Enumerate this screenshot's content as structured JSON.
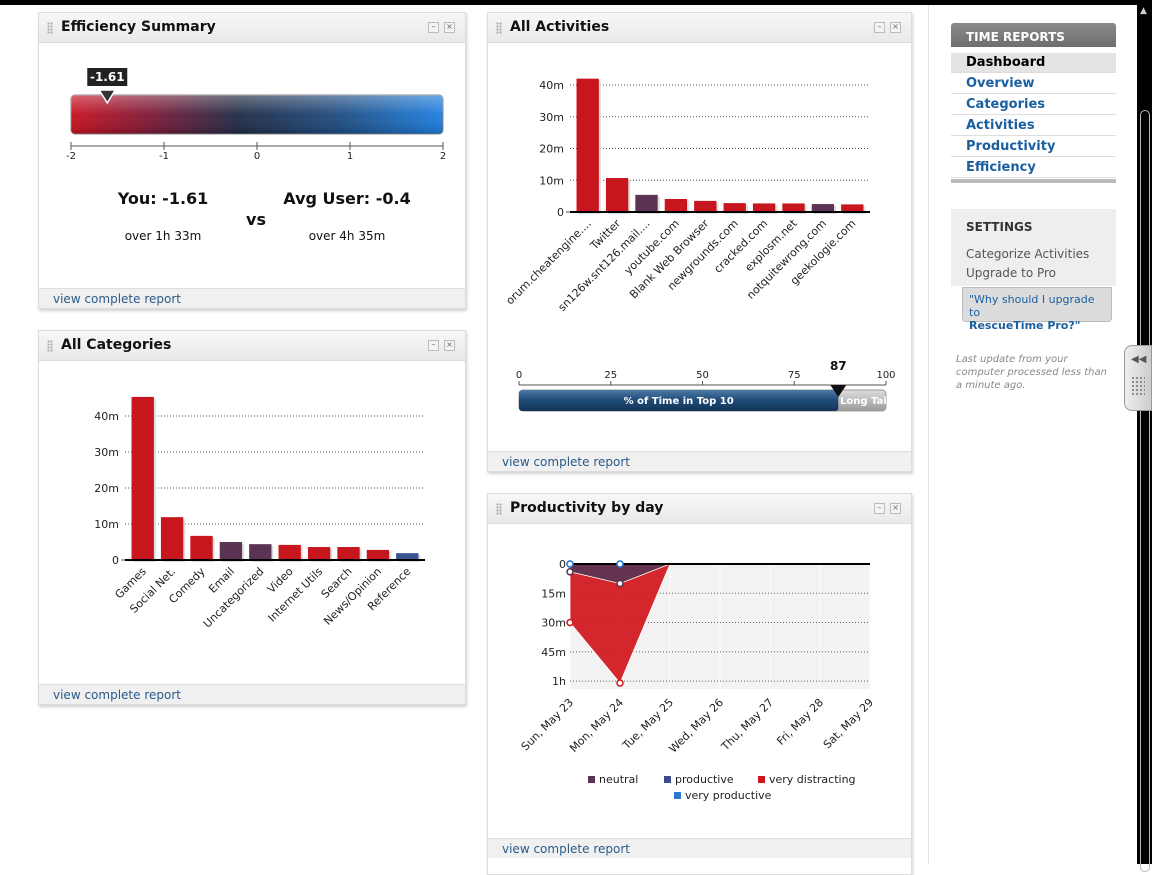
{
  "widgets": [
    {
      "title": "Efficiency Summary",
      "link": "view complete report"
    },
    {
      "title": "All Categories",
      "link": "view complete report"
    },
    {
      "title": "All Activities",
      "link": "view complete report"
    },
    {
      "title": "Productivity by day",
      "link": "view complete report"
    }
  ],
  "efficiency": {
    "you": "You: -1.61",
    "vs": "vs",
    "avg": "Avg User: -0.4",
    "you_time": "over 1h 33m",
    "avg_time": "over 4h 35m"
  },
  "chart_data": [
    {
      "type": "gauge",
      "value": -1.61,
      "xlim": [
        -2,
        2
      ],
      "xticks": [
        -2,
        -1,
        0,
        1,
        2
      ]
    },
    {
      "type": "bar",
      "categories": [
        "orum.cheatengine....",
        "Twitter",
        "sn126w.snt126.mail....",
        "youtube.com",
        "Blank Web Browser",
        "newgrounds.com",
        "cracked.com",
        "explosm.net",
        "notquitewrong.com",
        "geekologie.com"
      ],
      "values": [
        42,
        10.7,
        5.4,
        4.1,
        3.5,
        2.8,
        2.7,
        2.7,
        2.5,
        2.4
      ],
      "colors": [
        "#c8161e",
        "#c8161e",
        "#5a3452",
        "#c8161e",
        "#c8161e",
        "#c8161e",
        "#c8161e",
        "#c8161e",
        "#5a3452",
        "#c8161e"
      ],
      "ylim": [
        0,
        44
      ],
      "yticks": [
        0,
        {
          "value": 10,
          "label": "10m"
        },
        {
          "value": 20,
          "label": "20m"
        },
        {
          "value": 30,
          "label": "30m"
        },
        {
          "value": 40,
          "label": "40m"
        }
      ],
      "grid": true
    },
    {
      "type": "progress",
      "value": 87,
      "xlim": [
        0,
        100
      ],
      "xticks": [
        0,
        25,
        50,
        75,
        100
      ],
      "fill_label": "% of Time in Top 10",
      "rest_label": "Long Tail"
    },
    {
      "type": "bar",
      "categories": [
        "Games",
        "Social Net.",
        "Comedy",
        "Email",
        "Uncategorized",
        "Video",
        "Internet Utils",
        "Search",
        "News/Opinion",
        "Reference"
      ],
      "values": [
        45.3,
        11.9,
        6.7,
        5,
        4.4,
        4.2,
        3.6,
        3.6,
        2.8,
        1.9
      ],
      "colors": [
        "#c8161e",
        "#c8161e",
        "#c8161e",
        "#5a3452",
        "#5a3452",
        "#c8161e",
        "#c8161e",
        "#c8161e",
        "#c8161e",
        "#3a5690"
      ],
      "ylim": [
        0,
        47
      ],
      "yticks": [
        0,
        {
          "value": 10,
          "label": "10m"
        },
        {
          "value": 20,
          "label": "20m"
        },
        {
          "value": 30,
          "label": "30m"
        },
        {
          "value": 40,
          "label": "40m"
        }
      ],
      "grid": true
    },
    {
      "type": "area",
      "categories": [
        "Sun, May 23",
        "Mon, May 24",
        "Tue, May 25",
        "Wed, May 26",
        "Thu, May 27",
        "Fri, May 28",
        "Sat, May 29"
      ],
      "series": [
        {
          "name": "neutral",
          "color": "#5a3452",
          "values": [
            4,
            10,
            0,
            null,
            null,
            null,
            null
          ]
        },
        {
          "name": "productive",
          "color": "#3a4a8a",
          "values": [
            0,
            0,
            0,
            null,
            null,
            null,
            null
          ]
        },
        {
          "name": "very distracting",
          "color": "#d0161c",
          "values": [
            30,
            61,
            0,
            null,
            null,
            null,
            null
          ]
        },
        {
          "name": "very productive",
          "color": "#2a7ad0",
          "values": [
            0,
            0,
            0,
            null,
            null,
            null,
            null
          ]
        }
      ],
      "ylim": [
        62,
        0
      ],
      "yticks": [
        0,
        {
          "value": 15,
          "label": "15m"
        },
        {
          "value": 30,
          "label": "30m"
        },
        {
          "value": 45,
          "label": "45m"
        },
        {
          "value": 60,
          "label": "1h"
        }
      ],
      "grid": true
    }
  ],
  "sidebar": {
    "heading": "TIME REPORTS",
    "links": [
      "Dashboard",
      "Overview",
      "Categories",
      "Activities",
      "Productivity",
      "Efficiency"
    ],
    "settings": "SETTINGS",
    "settings_links": [
      "Categorize Activities",
      "Upgrade to Pro"
    ],
    "upgrade_q": "\"Why should I upgrade to",
    "upgrade_pro": "RescueTime Pro?\"",
    "last_update": "Last update from your computer processed less than a minute ago."
  }
}
